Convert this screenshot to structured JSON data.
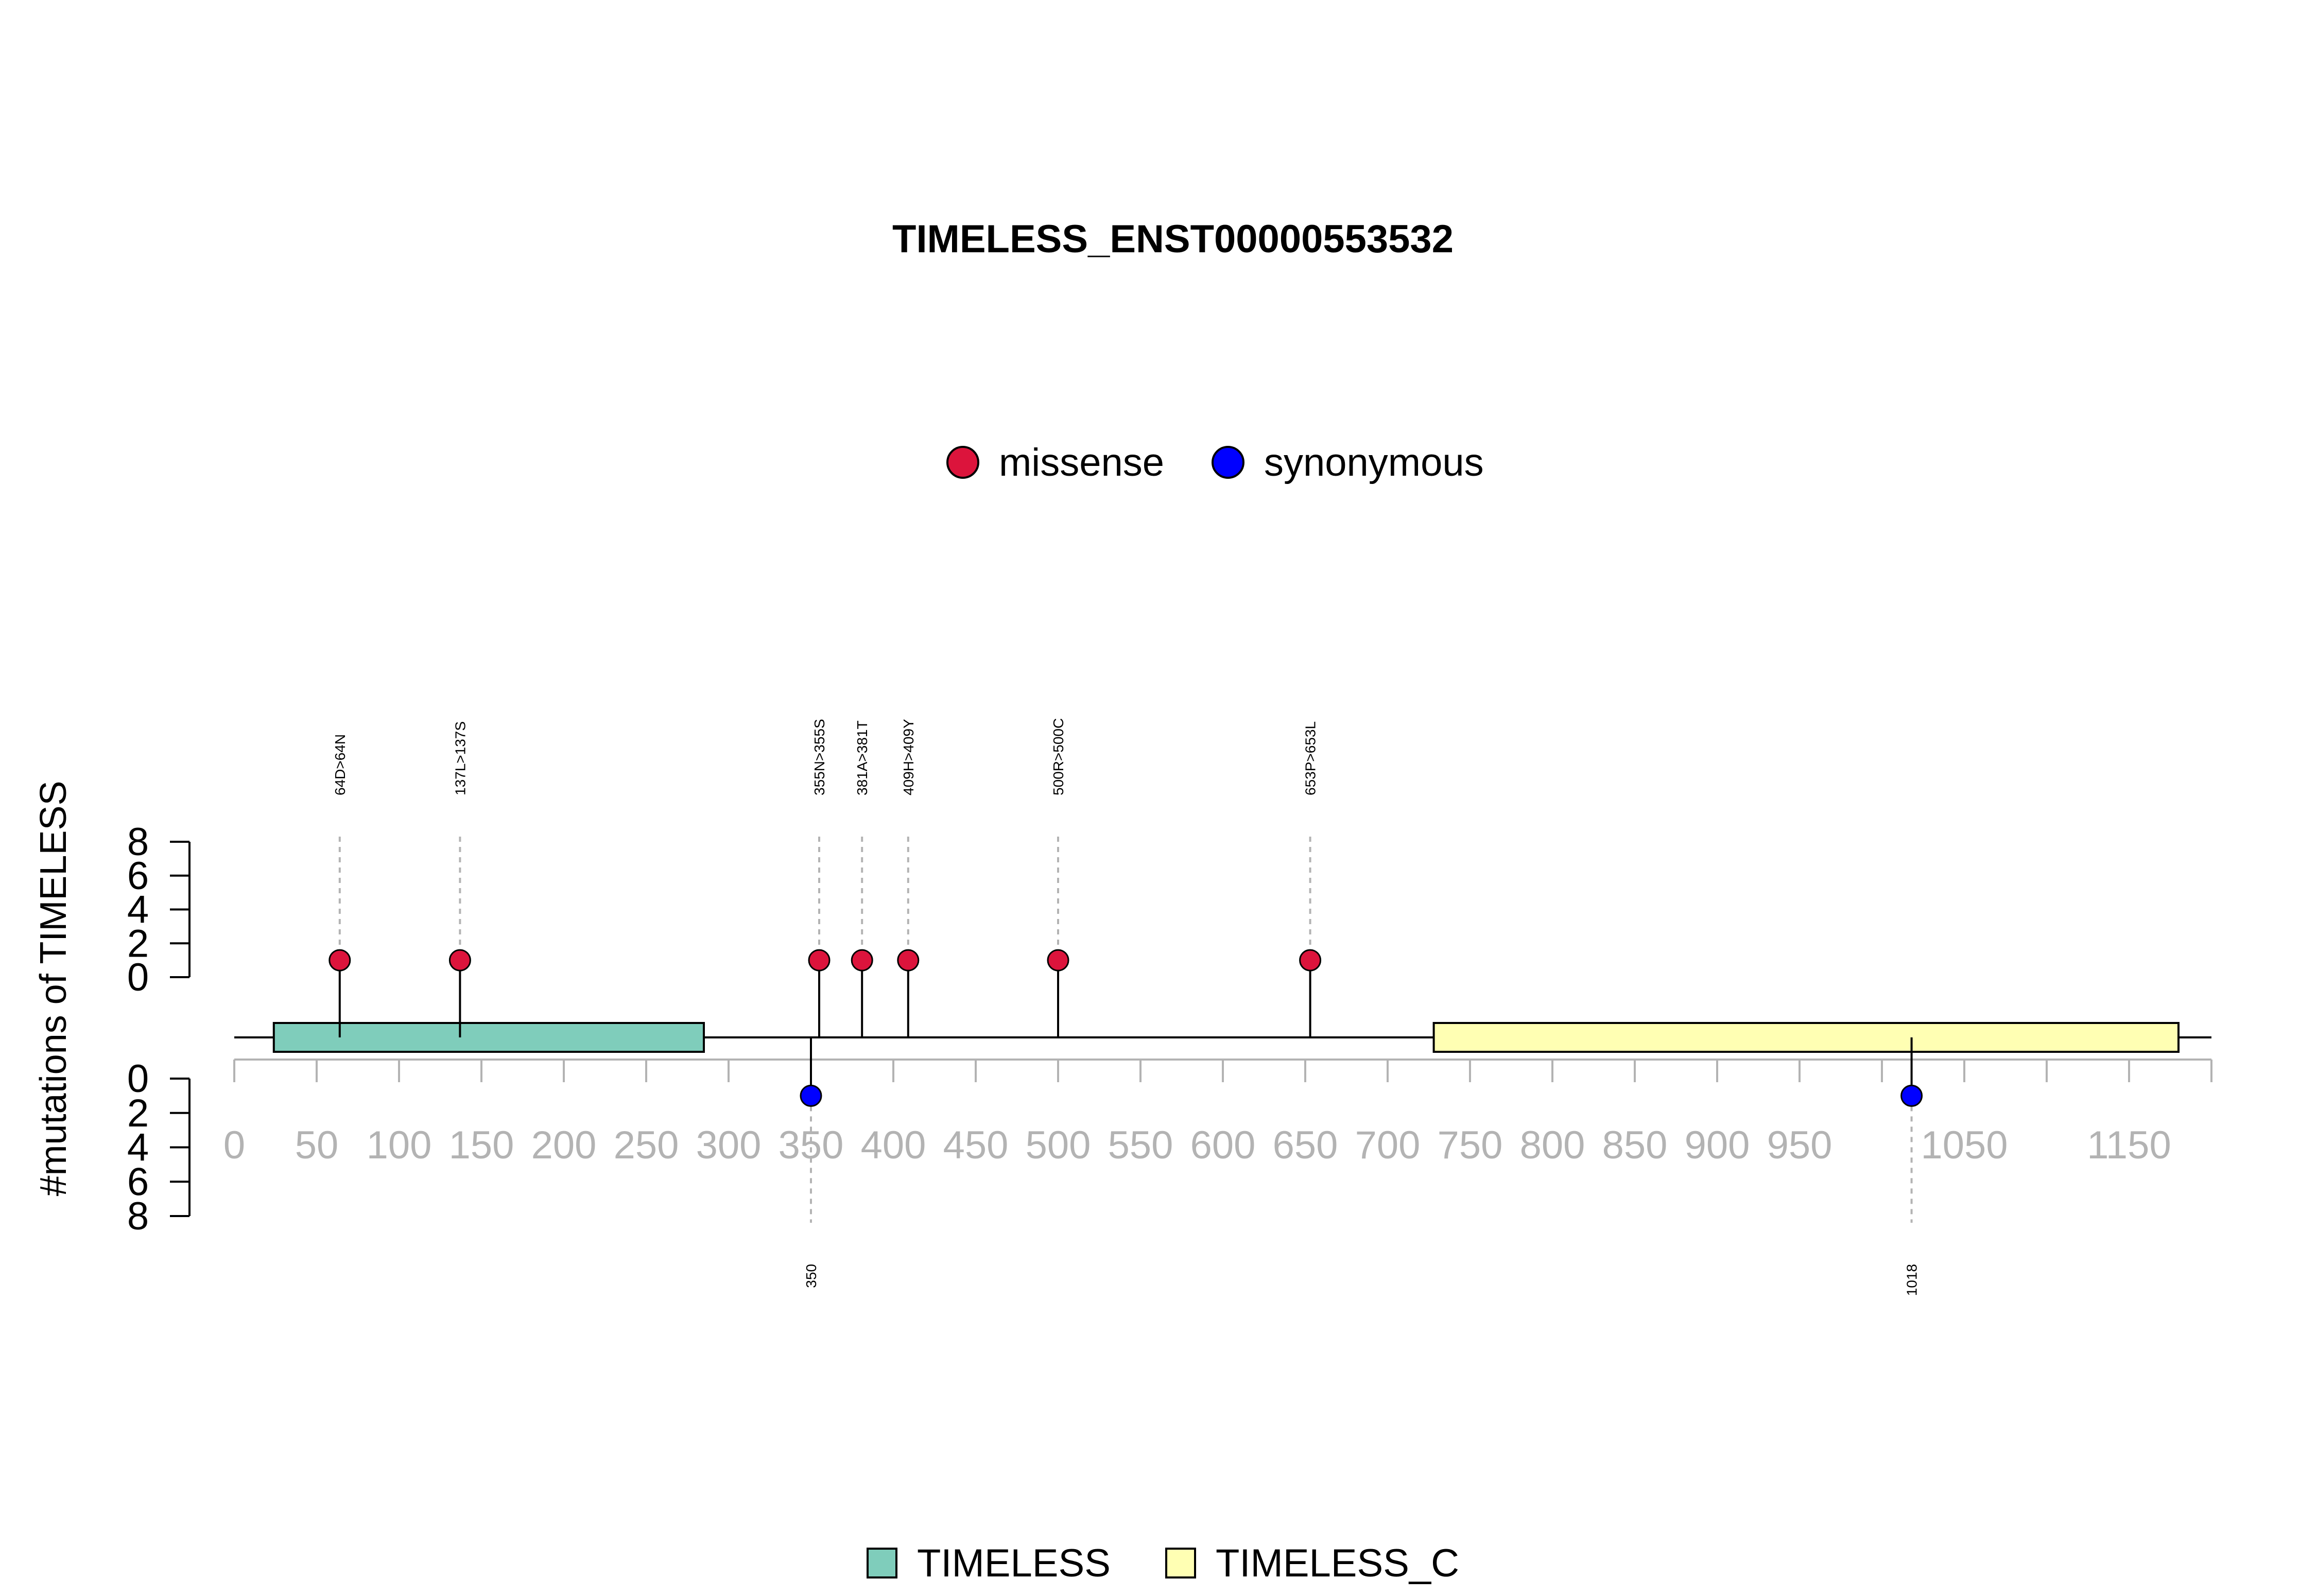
{
  "chart_data": {
    "type": "lollipop",
    "title": "TIMELESS_ENST00000553532",
    "ylabel": "#mutations of TIMELESS",
    "gene": "TIMELESS",
    "protein_length": 1208,
    "xlim": [
      0,
      1200
    ],
    "x_ticks": [
      0,
      50,
      100,
      150,
      200,
      250,
      300,
      350,
      400,
      450,
      500,
      550,
      600,
      650,
      700,
      750,
      800,
      850,
      900,
      950,
      1000,
      1050,
      1100,
      1150,
      1200
    ],
    "x_tick_labels": [
      "0",
      "50",
      "100",
      "150",
      "200",
      "250",
      "300",
      "350",
      "400",
      "450",
      "500",
      "550",
      "600",
      "650",
      "700",
      "750",
      "800",
      "850",
      "900",
      "950",
      "",
      "1050",
      "",
      "1150",
      ""
    ],
    "y_ticks": [
      0,
      2,
      4,
      6,
      8
    ],
    "y_tick_labels": [
      "0",
      "2",
      "4",
      "6",
      "8"
    ],
    "ylim": [
      0,
      8
    ],
    "legend_position": "top-center",
    "mutation_types": [
      {
        "name": "missense",
        "color": "#dc143c"
      },
      {
        "name": "synonymous",
        "color": "#0000ff"
      }
    ],
    "mutations_top": [
      {
        "position": 64,
        "label": "64D>64N",
        "type": "missense",
        "count": 1
      },
      {
        "position": 137,
        "label": "137L>137S",
        "type": "missense",
        "count": 1
      },
      {
        "position": 355,
        "label": "355N>355S",
        "type": "missense",
        "count": 1
      },
      {
        "position": 381,
        "label": "381A>381T",
        "type": "missense",
        "count": 1
      },
      {
        "position": 409,
        "label": "409H>409Y",
        "type": "missense",
        "count": 1
      },
      {
        "position": 500,
        "label": "500R>500C",
        "type": "missense",
        "count": 1
      },
      {
        "position": 653,
        "label": "653P>653L",
        "type": "missense",
        "count": 1
      }
    ],
    "mutations_bottom": [
      {
        "position": 350,
        "label": "350",
        "type": "synonymous",
        "count": 1
      },
      {
        "position": 1018,
        "label": "1018",
        "type": "synonymous",
        "count": 1
      }
    ],
    "domains": [
      {
        "name": "TIMELESS",
        "start": 24,
        "end": 285,
        "color": "#7fcdbb"
      },
      {
        "name": "TIMELESS_C",
        "start": 728,
        "end": 1180,
        "color": "#ffffb3"
      }
    ]
  }
}
